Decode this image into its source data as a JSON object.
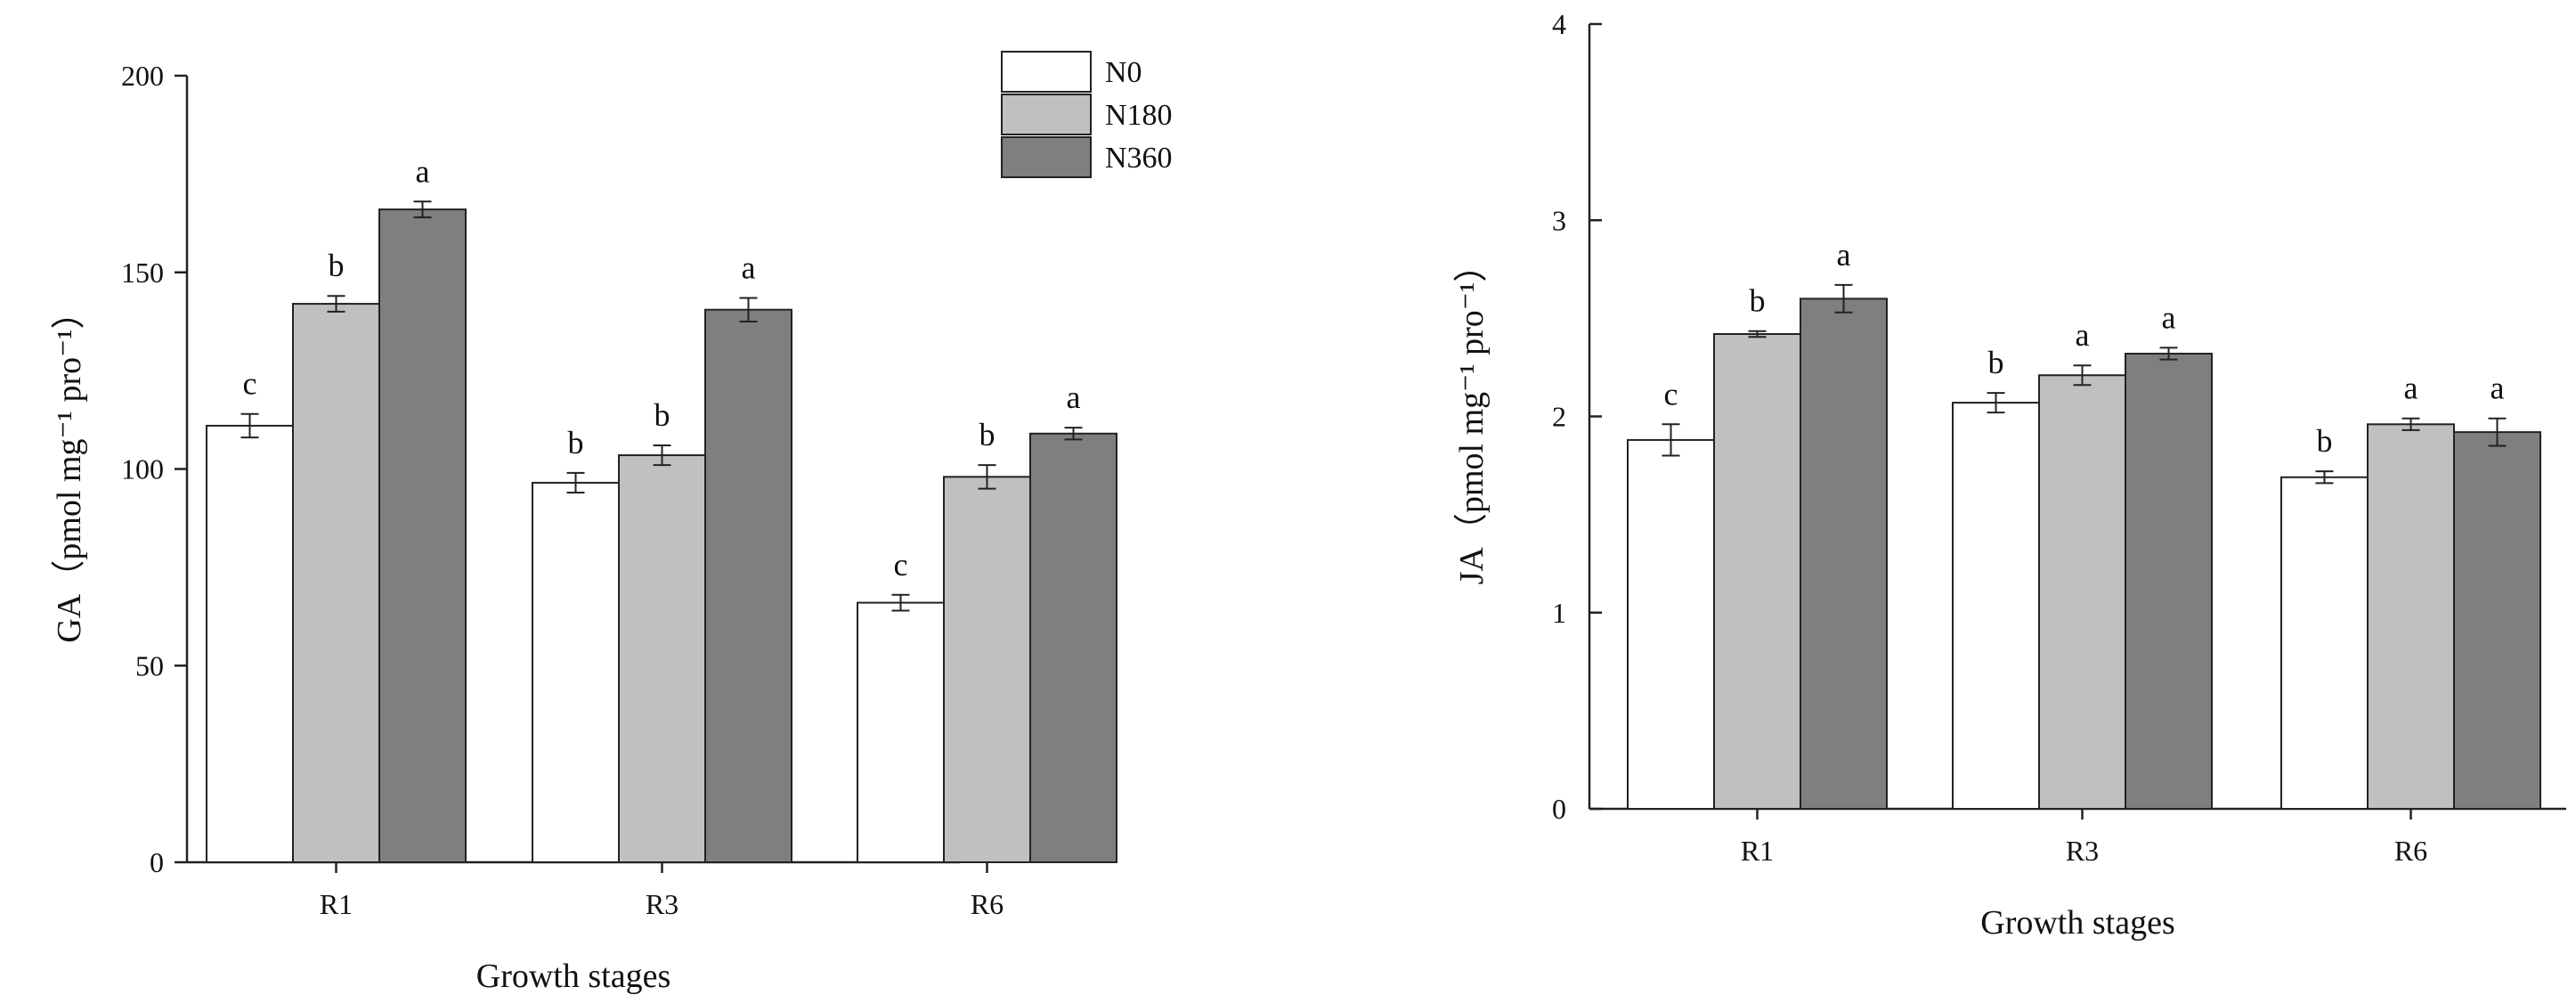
{
  "chart_data": [
    {
      "type": "bar",
      "xlabel": "Growth stages",
      "ylabel": "GA（pmol mg⁻¹ pro⁻¹）",
      "ylim": [
        0,
        200
      ],
      "yticks": [
        0,
        50,
        100,
        150,
        200
      ],
      "categories": [
        "R1",
        "R3",
        "R6"
      ],
      "series": [
        {
          "name": "N0",
          "color": "#ffffff",
          "values": [
            111,
            96.5,
            66
          ],
          "errors": [
            3,
            2.5,
            2
          ],
          "labels": [
            "c",
            "b",
            "c"
          ]
        },
        {
          "name": "N180",
          "color": "#c0c0c0",
          "values": [
            142,
            103.5,
            98
          ],
          "errors": [
            2,
            2.5,
            3
          ],
          "labels": [
            "b",
            "b",
            "b"
          ]
        },
        {
          "name": "N360",
          "color": "#7f7f7f",
          "values": [
            166,
            140.5,
            109
          ],
          "errors": [
            2,
            3,
            1.5
          ],
          "labels": [
            "a",
            "a",
            "a"
          ]
        }
      ],
      "legend": "top-right",
      "grid": false
    },
    {
      "type": "bar",
      "xlabel": "Growth stages",
      "ylabel": "JA（pmol mg⁻¹ pro⁻¹）",
      "ylim": [
        0,
        4
      ],
      "yticks": [
        0,
        1,
        2,
        3,
        4
      ],
      "categories": [
        "R1",
        "R3",
        "R6"
      ],
      "series": [
        {
          "name": "N0",
          "color": "#ffffff",
          "values": [
            1.88,
            2.07,
            1.69
          ],
          "errors": [
            0.08,
            0.05,
            0.03
          ],
          "labels": [
            "c",
            "b",
            "b"
          ]
        },
        {
          "name": "N180",
          "color": "#c0c0c0",
          "values": [
            2.42,
            2.21,
            1.96
          ],
          "errors": [
            0.015,
            0.05,
            0.03
          ],
          "labels": [
            "b",
            "a",
            "a"
          ]
        },
        {
          "name": "N360",
          "color": "#7f7f7f",
          "values": [
            2.6,
            2.32,
            1.92
          ],
          "errors": [
            0.07,
            0.03,
            0.07
          ],
          "labels": [
            "a",
            "a",
            "a"
          ]
        }
      ],
      "legend": "none",
      "grid": false
    }
  ]
}
